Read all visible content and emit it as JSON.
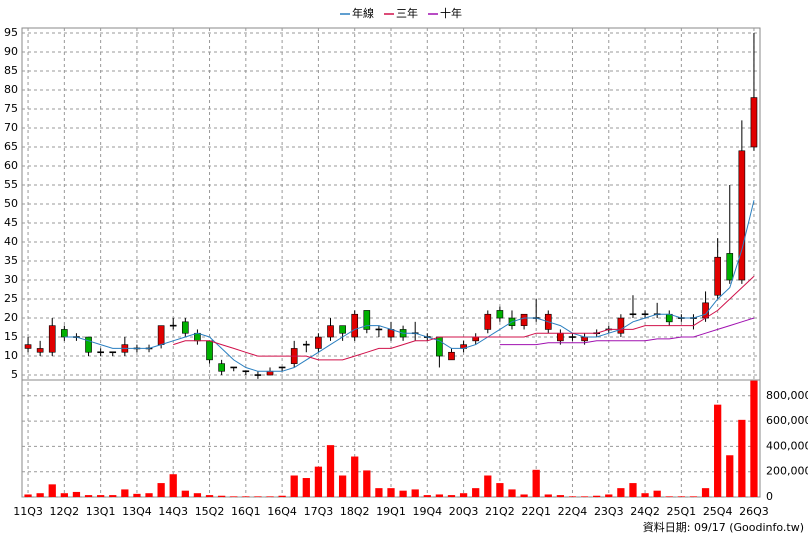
{
  "chart_data": {
    "type": "candlestick",
    "categories": [
      "11Q3",
      null,
      null,
      "12Q2",
      null,
      null,
      "13Q1",
      null,
      null,
      "13Q4",
      null,
      null,
      "14Q3",
      null,
      null,
      "15Q2",
      null,
      null,
      "16Q1",
      null,
      null,
      "16Q4",
      null,
      null,
      "17Q3",
      null,
      null,
      "18Q2",
      null,
      null,
      "19Q1",
      null,
      null,
      "19Q4",
      null,
      null,
      "20Q3",
      null,
      null,
      "21Q2",
      null,
      null,
      "22Q1",
      null,
      null,
      "22Q4",
      null,
      null,
      "23Q3",
      null,
      null,
      "24Q2",
      null,
      null,
      "25Q1",
      null,
      null,
      "25Q4",
      null,
      null,
      "26Q3"
    ],
    "open": [
      12,
      11,
      11,
      17,
      15,
      15,
      11,
      11,
      11,
      12,
      12,
      13,
      18,
      19,
      16,
      14,
      8,
      7,
      6,
      5,
      5,
      7,
      8,
      13,
      12,
      15,
      18,
      15,
      22,
      17,
      15,
      17,
      16,
      15,
      15,
      9,
      12,
      14,
      17,
      22,
      20,
      18,
      20,
      17,
      14,
      15,
      14,
      16,
      17,
      16,
      21,
      21,
      21,
      21,
      20,
      20,
      20,
      26,
      37,
      30,
      65
    ],
    "high": [
      15,
      14,
      20,
      18,
      16,
      15,
      12,
      11,
      15,
      13,
      13,
      18,
      20,
      20,
      17,
      14,
      9,
      7,
      6,
      6,
      7,
      7,
      14,
      14,
      16,
      20,
      18,
      22,
      22,
      18,
      19,
      18,
      19,
      16,
      15,
      12,
      14,
      16,
      22,
      23,
      22,
      21,
      25,
      22,
      17,
      16,
      16,
      17,
      18,
      21,
      26,
      22,
      24,
      22,
      21,
      21,
      27,
      41,
      55,
      72,
      95
    ],
    "low": [
      11,
      10,
      10,
      14,
      14,
      10,
      10,
      10,
      10,
      11,
      11,
      12,
      17,
      15,
      13,
      8,
      5,
      6,
      5,
      4,
      5,
      6,
      7,
      11,
      11,
      14,
      14,
      14,
      16,
      15,
      14,
      14,
      14,
      14,
      7,
      9,
      11,
      13,
      16,
      19,
      17,
      17,
      19,
      16,
      13,
      14,
      13,
      15,
      16,
      15,
      20,
      20,
      20,
      18,
      19,
      17,
      19,
      25,
      29,
      29,
      64
    ],
    "close": [
      13,
      12,
      18,
      15,
      15,
      11,
      11,
      11,
      13,
      12,
      12,
      18,
      18,
      16,
      14,
      9,
      6,
      7,
      6,
      5,
      6,
      7,
      12,
      13,
      15,
      18,
      16,
      21,
      17,
      17,
      17,
      15,
      16,
      15,
      10,
      11,
      13,
      15,
      21,
      20,
      18,
      21,
      20,
      21,
      16,
      15,
      15,
      16,
      17,
      20,
      21,
      21,
      21,
      19,
      20,
      20,
      24,
      36,
      30,
      64,
      78
    ],
    "up_color": "#e00000",
    "down_color": "#00b000",
    "flat_color": "#000000",
    "ylim": [
      3.7,
      96.3
    ],
    "yticks": [
      5,
      10,
      15,
      20,
      25,
      30,
      35,
      40,
      45,
      50,
      55,
      60,
      65,
      70,
      75,
      80,
      85,
      90,
      95
    ],
    "grid": true,
    "series": [
      {
        "name": "年線",
        "color": "#2a7fc0",
        "values": [
          null,
          null,
          null,
          15,
          15,
          14,
          13,
          12,
          12,
          12,
          12,
          13,
          14,
          15,
          16,
          15,
          12,
          9,
          7,
          6,
          6,
          6,
          7,
          9,
          11,
          13,
          15,
          17,
          18,
          18,
          17,
          16,
          16,
          15,
          14,
          12,
          12,
          13,
          15,
          17,
          19,
          20,
          20,
          19,
          18,
          16,
          15,
          15,
          16,
          17,
          19,
          20,
          21,
          21,
          20,
          20,
          21,
          25,
          28,
          38,
          51
        ]
      },
      {
        "name": "三年",
        "color": "#d0104a",
        "values": [
          null,
          null,
          null,
          null,
          null,
          null,
          null,
          null,
          null,
          null,
          null,
          null,
          13,
          14,
          14,
          14,
          13,
          12,
          11,
          10,
          10,
          10,
          10,
          10,
          9,
          9,
          9,
          10,
          11,
          12,
          12,
          13,
          14,
          14,
          15,
          15,
          15,
          15,
          15,
          15,
          15,
          15,
          16,
          16,
          16,
          16,
          16,
          16,
          17,
          17,
          17,
          18,
          18,
          18,
          18,
          18,
          20,
          22,
          25,
          28,
          31
        ]
      },
      {
        "name": "十年",
        "color": "#a010b0",
        "values": [
          null,
          null,
          null,
          null,
          null,
          null,
          null,
          null,
          null,
          null,
          null,
          null,
          null,
          null,
          null,
          null,
          null,
          null,
          null,
          null,
          null,
          null,
          null,
          null,
          null,
          null,
          null,
          null,
          null,
          null,
          null,
          null,
          null,
          null,
          null,
          null,
          null,
          null,
          null,
          13,
          13,
          13,
          13,
          13.5,
          13.5,
          13.5,
          13.5,
          14,
          14,
          14,
          14,
          14,
          14.5,
          14.5,
          15,
          15,
          16,
          17,
          18,
          19,
          20
        ]
      }
    ],
    "volume": {
      "color": "#ff0000",
      "values": [
        20000,
        30000,
        100000,
        30000,
        40000,
        15000,
        15000,
        15000,
        60000,
        25000,
        30000,
        110000,
        180000,
        50000,
        30000,
        15000,
        10000,
        5000,
        5000,
        5000,
        5000,
        10000,
        170000,
        150000,
        240000,
        410000,
        170000,
        320000,
        210000,
        70000,
        70000,
        50000,
        60000,
        15000,
        20000,
        15000,
        30000,
        70000,
        170000,
        110000,
        60000,
        20000,
        215000,
        20000,
        15000,
        5000,
        5000,
        10000,
        20000,
        70000,
        110000,
        30000,
        50000,
        5000,
        5000,
        5000,
        70000,
        730000,
        330000,
        610000,
        920000
      ],
      "ylim": [
        0,
        925000
      ],
      "yticks": [
        0,
        {
          "value": 200000,
          "label": "200,000"
        },
        {
          "value": 400000,
          "label": "400,000"
        },
        {
          "value": 600000,
          "label": "600,000"
        },
        {
          "value": 800000,
          "label": "800,000"
        }
      ]
    },
    "source": "資料日期: 09/17 (Goodinfo.tw)"
  }
}
